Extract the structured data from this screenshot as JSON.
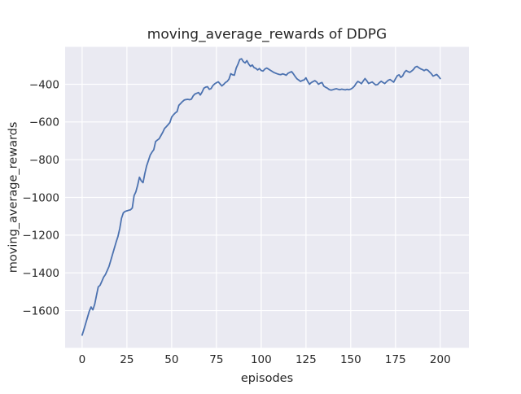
{
  "figure": {
    "title": "moving_average_rewards of DDPG",
    "xlabel": "episodes",
    "ylabel": "moving_average_rewards"
  },
  "chart_data": {
    "type": "line",
    "title": "moving_average_rewards of DDPG",
    "xlabel": "episodes",
    "ylabel": "moving_average_rewards",
    "series_name": "moving_average_rewards",
    "grid": true,
    "legend_position": "none",
    "plot_bg_color": "#eaeaf2",
    "grid_color": "#ffffff",
    "line_color": "#4c72b0",
    "text_color": "#262626",
    "x_ticks": [
      0,
      25,
      50,
      75,
      100,
      125,
      150,
      175,
      200
    ],
    "y_ticks": [
      -400,
      -600,
      -800,
      -1000,
      -1200,
      -1400,
      -1600
    ],
    "xlim": [
      -9.5,
      216
    ],
    "ylim": [
      -1797,
      -202
    ],
    "x_start": 0,
    "x_step": 1,
    "values": [
      -1730,
      -1700,
      -1668,
      -1635,
      -1603,
      -1581,
      -1596,
      -1567,
      -1520,
      -1474,
      -1466,
      -1445,
      -1423,
      -1409,
      -1388,
      -1366,
      -1334,
      -1301,
      -1269,
      -1236,
      -1207,
      -1165,
      -1110,
      -1082,
      -1074,
      -1071,
      -1068,
      -1066,
      -1056,
      -991,
      -970,
      -935,
      -893,
      -912,
      -922,
      -874,
      -833,
      -805,
      -776,
      -760,
      -747,
      -704,
      -696,
      -689,
      -672,
      -655,
      -635,
      -625,
      -614,
      -603,
      -574,
      -562,
      -552,
      -545,
      -512,
      -502,
      -492,
      -484,
      -481,
      -480,
      -482,
      -479,
      -462,
      -452,
      -448,
      -444,
      -457,
      -441,
      -421,
      -415,
      -413,
      -427,
      -423,
      -407,
      -398,
      -392,
      -387,
      -398,
      -409,
      -401,
      -391,
      -385,
      -373,
      -344,
      -350,
      -352,
      -315,
      -294,
      -269,
      -265,
      -280,
      -287,
      -275,
      -293,
      -305,
      -298,
      -312,
      -316,
      -324,
      -317,
      -327,
      -330,
      -320,
      -314,
      -319,
      -325,
      -331,
      -337,
      -341,
      -345,
      -348,
      -349,
      -345,
      -348,
      -352,
      -342,
      -337,
      -333,
      -345,
      -359,
      -371,
      -378,
      -385,
      -380,
      -377,
      -366,
      -385,
      -400,
      -391,
      -386,
      -381,
      -388,
      -400,
      -394,
      -391,
      -410,
      -416,
      -421,
      -428,
      -431,
      -429,
      -426,
      -424,
      -427,
      -429,
      -426,
      -428,
      -430,
      -427,
      -429,
      -426,
      -420,
      -411,
      -396,
      -385,
      -390,
      -397,
      -383,
      -370,
      -382,
      -396,
      -392,
      -388,
      -396,
      -404,
      -402,
      -392,
      -384,
      -390,
      -396,
      -387,
      -379,
      -375,
      -382,
      -389,
      -371,
      -355,
      -350,
      -364,
      -356,
      -337,
      -327,
      -333,
      -337,
      -330,
      -322,
      -310,
      -305,
      -312,
      -318,
      -322,
      -328,
      -322,
      -325,
      -335,
      -344,
      -357,
      -352,
      -348,
      -358,
      -370
    ]
  }
}
